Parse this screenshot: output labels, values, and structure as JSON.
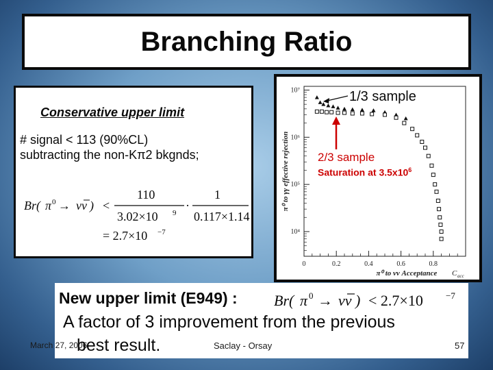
{
  "slide": {
    "title": "Branching Ratio",
    "conservative_heading": "Conservative upper limit",
    "signal_line": "# signal < 113 (90%CL)",
    "subtract_line": "subtracting the non-Kπ2 bkgnds;",
    "formula_line1": "Br(π⁰ → νν̅) < 110 / 3.02×10⁹ · 1 / 0.117×1.14",
    "formula_line2": "= 2.7×10⁻⁷",
    "new_limit_label": "New upper limit (E949) :",
    "new_limit_formula": "Br(π⁰ → νν̅) < 2.7×10⁻⁷",
    "factor_text": "A factor of 3 improvement from the previous",
    "best_text": "best result.",
    "footer_date": "March 27, 2006",
    "footer_center": "Saclay - Orsay",
    "page_number": "57"
  },
  "formula": {
    "br": "Br(",
    "pi0": "π",
    "sup0": "0",
    "arrow": "→",
    "nunu": "νν",
    "close": ")",
    "lt": "<",
    "num1": "110",
    "den1": "3.02×10",
    "den1_exp": "9",
    "dot": "·",
    "num2": "1",
    "den2": "0.117×1.14",
    "eq": "= 2.7×10",
    "eq_exp": "−7",
    "new_rhs": "< 2.7×10",
    "new_exp": "−7"
  },
  "annotations": {
    "one_third": "1/3 sample",
    "two_third": "2/3 sample",
    "saturation": "Saturation at 3.5x10",
    "saturation_exp": "6"
  },
  "colors": {
    "annotation_red": "#cc0000"
  },
  "chart_data": {
    "type": "scatter",
    "xlabel": "π⁰ to νν Acceptance",
    "xlabel_suffix": "C",
    "xlabel_sub": "acc",
    "ylabel": "π⁰ to γγ effective rejection",
    "xscale": "linear",
    "yscale": "log",
    "xlim": [
      0,
      1.0
    ],
    "ylim": [
      3000,
      12000000
    ],
    "x_ticks": [
      0,
      0.2,
      0.4,
      0.6,
      0.8
    ],
    "x_tick_labels": [
      "0",
      "0.2",
      "0.4",
      "0.6",
      "0.8"
    ],
    "y_ticks": [
      10000,
      100000,
      1000000,
      10000000
    ],
    "y_tick_labels": [
      "10⁴",
      "10⁵",
      "10⁶",
      "10⁷"
    ],
    "grid": false,
    "series": [
      {
        "marker": "triangle",
        "x": [
          0.08,
          0.1,
          0.12,
          0.15,
          0.18,
          0.21,
          0.25,
          0.3,
          0.36,
          0.43,
          0.5,
          0.57,
          0.63
        ],
        "y": [
          7000000,
          5500000,
          5000000,
          4700000,
          4500000,
          4200000,
          4000000,
          3900000,
          3800000,
          3700000,
          3400000,
          3000000,
          2500000
        ]
      },
      {
        "marker": "square",
        "x": [
          0.08,
          0.11,
          0.14,
          0.17,
          0.21,
          0.25,
          0.3,
          0.36,
          0.42,
          0.5,
          0.57,
          0.62,
          0.67,
          0.7,
          0.73,
          0.75,
          0.77,
          0.79,
          0.8,
          0.81,
          0.82,
          0.83,
          0.835,
          0.84,
          0.845,
          0.85,
          0.85
        ],
        "y": [
          3500000,
          3500000,
          3400000,
          3400000,
          3300000,
          3300000,
          3200000,
          3200000,
          3100000,
          3000000,
          2600000,
          2000000,
          1500000,
          1100000,
          800000,
          600000,
          400000,
          250000,
          160000,
          100000,
          70000,
          45000,
          30000,
          20000,
          14000,
          10000,
          7000
        ]
      }
    ]
  }
}
